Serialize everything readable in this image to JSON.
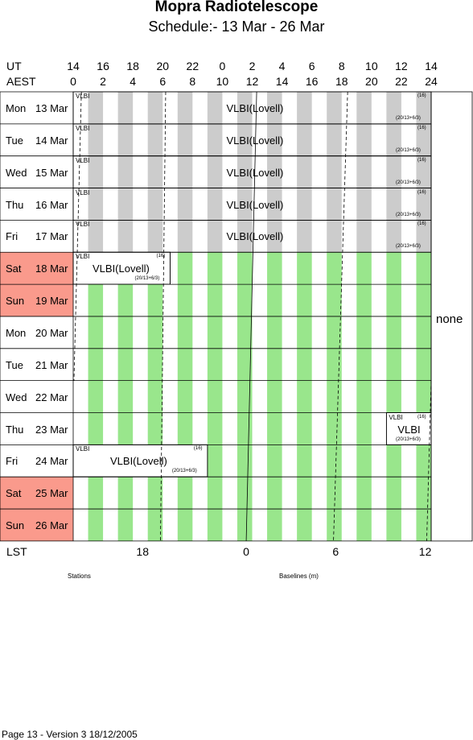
{
  "header": {
    "title": "Mopra Radiotelescope",
    "subtitle": "Schedule:- 13 Mar - 26 Mar"
  },
  "axes": {
    "ut_label": "UT",
    "aest_label": "AEST",
    "ut_ticks": [
      "14",
      "16",
      "18",
      "20",
      "22",
      "0",
      "2",
      "4",
      "6",
      "8",
      "10",
      "12",
      "14"
    ],
    "aest_ticks": [
      "0",
      "2",
      "4",
      "6",
      "8",
      "10",
      "12",
      "14",
      "16",
      "18",
      "20",
      "22",
      "24"
    ],
    "lst_label": "LST",
    "lst_ticks": [
      "18",
      "0",
      "6",
      "12"
    ]
  },
  "days": [
    {
      "dow": "Mon",
      "date": "13 Mar",
      "weekend": false,
      "shading": "grey"
    },
    {
      "dow": "Tue",
      "date": "14 Mar",
      "weekend": false,
      "shading": "grey"
    },
    {
      "dow": "Wed",
      "date": "15 Mar",
      "weekend": false,
      "shading": "grey"
    },
    {
      "dow": "Thu",
      "date": "16 Mar",
      "weekend": false,
      "shading": "grey"
    },
    {
      "dow": "Fri",
      "date": "17 Mar",
      "weekend": false,
      "shading": "grey"
    },
    {
      "dow": "Sat",
      "date": "18 Mar",
      "weekend": true,
      "shading": "mixed"
    },
    {
      "dow": "Sun",
      "date": "19 Mar",
      "weekend": true,
      "shading": "green"
    },
    {
      "dow": "Mon",
      "date": "20 Mar",
      "weekend": false,
      "shading": "green"
    },
    {
      "dow": "Tue",
      "date": "21 Mar",
      "weekend": false,
      "shading": "green"
    },
    {
      "dow": "Wed",
      "date": "22 Mar",
      "weekend": false,
      "shading": "green"
    },
    {
      "dow": "Thu",
      "date": "23 Mar",
      "weekend": false,
      "shading": "green"
    },
    {
      "dow": "Fri",
      "date": "24 Mar",
      "weekend": false,
      "shading": "green"
    },
    {
      "dow": "Sat",
      "date": "25 Mar",
      "weekend": true,
      "shading": "green"
    },
    {
      "dow": "Sun",
      "date": "26 Mar",
      "weekend": true,
      "shading": "green"
    }
  ],
  "blocks": [
    {
      "day": 0,
      "main": "VLBI(Lovell)",
      "corner": "VLBI",
      "count": "(16)",
      "config": "(20/13+6/3)",
      "start_hr": 0,
      "end_hr": 24
    },
    {
      "day": 1,
      "main": "VLBI(Lovell)",
      "corner": "VLBI",
      "count": "(16)",
      "config": "(20/13+6/3)",
      "start_hr": 0,
      "end_hr": 24
    },
    {
      "day": 2,
      "main": "VLBI(Lovell)",
      "corner": "VLBI",
      "count": "(16)",
      "config": "(20/13+6/3)",
      "start_hr": 0,
      "end_hr": 24
    },
    {
      "day": 3,
      "main": "VLBI(Lovell)",
      "corner": "VLBI",
      "count": "(16)",
      "config": "(20/13+6/3)",
      "start_hr": 0,
      "end_hr": 24
    },
    {
      "day": 4,
      "main": "VLBI(Lovell)",
      "corner": "VLBI",
      "count": "(16)",
      "config": "(20/13+6/3)",
      "start_hr": 0,
      "end_hr": 24
    },
    {
      "day": 5,
      "main": "VLBI(Lovell)",
      "corner": "VLBI",
      "count": "(16)",
      "config": "(20/13+6/3)",
      "start_hr": 0,
      "end_hr": 6.5
    },
    {
      "day": 10,
      "main": "VLBI",
      "corner": "VLBI",
      "count": "(16)",
      "config": "(20/13+6/3)",
      "start_hr": 21.0,
      "end_hr": 24
    },
    {
      "day": 11,
      "main": "VLBI(Lovell)",
      "corner": "VLBI",
      "count": "(16)",
      "config": "(20/13+6/3)",
      "start_hr": 0,
      "end_hr": 9.0
    }
  ],
  "side_note": "none",
  "legend": {
    "stations": "Stations",
    "baselines": "Baselines (m)"
  },
  "footer": "Page 13 - Version 3  18/12/2005",
  "colors": {
    "grey_band": "#cccccc",
    "green_band": "#99e68c",
    "weekend": "#fa9a8c"
  }
}
